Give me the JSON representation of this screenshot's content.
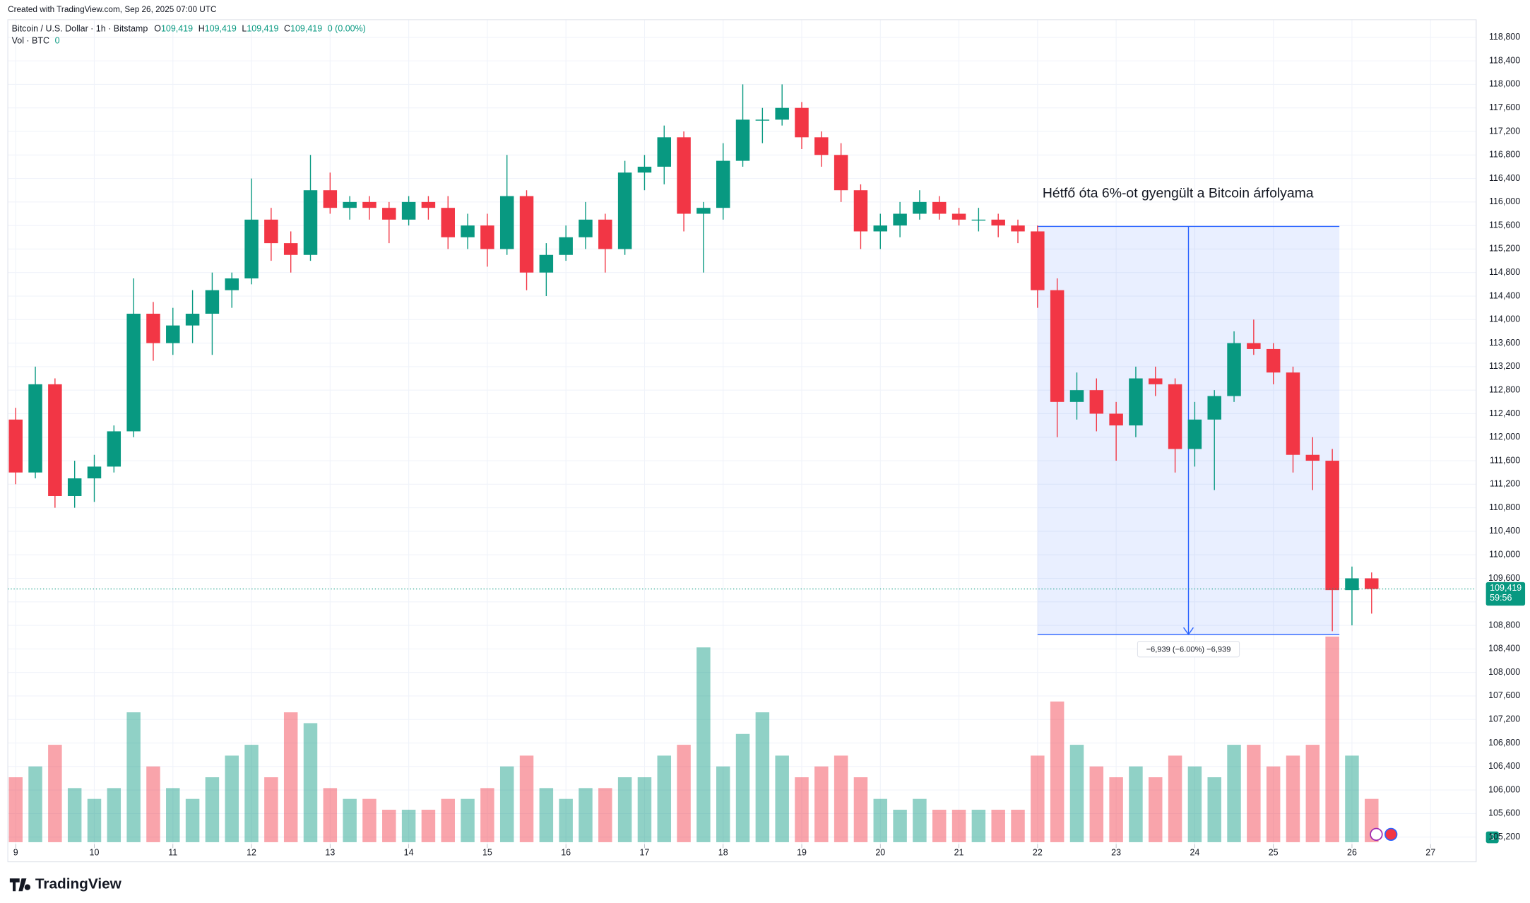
{
  "chart_data": {
    "type": "candlestick",
    "header": "Created with TradingView.com, Sep 26, 2025 07:00 UTC",
    "legend": {
      "symbol": "Bitcoin / U.S. Dollar · 1h · Bitstamp",
      "ohlc": [
        {
          "key": "O",
          "value": "109,419"
        },
        {
          "key": "H",
          "value": "109,419"
        },
        {
          "key": "L",
          "value": "109,419"
        },
        {
          "key": "C",
          "value": "109,419"
        }
      ],
      "change": "0 (0.00%)",
      "volume_name": "Vol · BTC",
      "volume_value": "0"
    },
    "annotation": "Hétfő óta 6%-ot gyengült a Bitcoin árfolyama",
    "brand": "TradingView",
    "up_color": "#089981",
    "down_color": "#f23645",
    "x": [
      9,
      9.25,
      9.5,
      9.75,
      10,
      10.25,
      10.5,
      10.75,
      11,
      11.25,
      11.5,
      11.75,
      12,
      12.25,
      12.5,
      12.75,
      13,
      13.25,
      13.5,
      13.75,
      14,
      14.25,
      14.5,
      14.75,
      15,
      15.25,
      15.5,
      15.75,
      16,
      16.25,
      16.5,
      16.75,
      17,
      17.25,
      17.5,
      17.75,
      18,
      18.25,
      18.5,
      18.75,
      19,
      19.25,
      19.5,
      19.75,
      20,
      20.25,
      20.5,
      20.75,
      21,
      21.25,
      21.5,
      21.75,
      22,
      22.25,
      22.5,
      22.75,
      23,
      23.25,
      23.5,
      23.75,
      24,
      24.25,
      24.5,
      24.75,
      25,
      25.25,
      25.5,
      25.75,
      26,
      26.25
    ],
    "open": [
      112300,
      111400,
      112900,
      111000,
      111300,
      111500,
      112100,
      114100,
      113600,
      113900,
      114100,
      114500,
      114700,
      115700,
      115300,
      115100,
      116200,
      115900,
      116000,
      115900,
      115700,
      116000,
      115900,
      115400,
      115600,
      115200,
      116100,
      114800,
      115100,
      115400,
      115700,
      115200,
      116500,
      116600,
      117100,
      115800,
      115900,
      116700,
      117400,
      117400,
      117600,
      117100,
      116800,
      116200,
      115500,
      115600,
      115800,
      116000,
      115800,
      115700,
      115700,
      115600,
      115500,
      114500,
      112600,
      112800,
      112400,
      112200,
      113000,
      112900,
      111800,
      112300,
      112700,
      113600,
      113500,
      113100,
      111700,
      111600,
      109400,
      109600
    ],
    "high": [
      112500,
      113200,
      113000,
      111600,
      111700,
      112200,
      114700,
      114300,
      114200,
      114500,
      114800,
      114800,
      116400,
      115900,
      115500,
      116800,
      116500,
      116100,
      116100,
      116000,
      116100,
      116100,
      116100,
      115800,
      115800,
      116800,
      116200,
      115300,
      115600,
      116000,
      115800,
      116700,
      116800,
      117300,
      117200,
      116000,
      117000,
      118000,
      117600,
      118000,
      117700,
      117200,
      117000,
      116300,
      115800,
      116000,
      116200,
      116100,
      115900,
      115900,
      115800,
      115700,
      115600,
      114700,
      113100,
      113000,
      112600,
      113200,
      113200,
      113000,
      112600,
      112800,
      113800,
      114000,
      113600,
      113200,
      112000,
      111800,
      109800,
      109700
    ],
    "low": [
      111200,
      111300,
      110800,
      110800,
      110900,
      111400,
      112000,
      113300,
      113400,
      113600,
      113400,
      114200,
      114600,
      115000,
      114800,
      115000,
      115800,
      115700,
      115700,
      115300,
      115600,
      115700,
      115200,
      115200,
      114900,
      115100,
      114500,
      114400,
      115000,
      115200,
      114800,
      115100,
      116200,
      116300,
      115500,
      114800,
      115700,
      116600,
      117000,
      117300,
      116900,
      116600,
      116000,
      115200,
      115200,
      115400,
      115700,
      115700,
      115600,
      115500,
      115400,
      115300,
      114200,
      112000,
      112300,
      112100,
      111600,
      112000,
      112700,
      111400,
      111500,
      111100,
      112600,
      113400,
      112900,
      111400,
      111100,
      108700,
      108800,
      109000
    ],
    "close": [
      111400,
      112900,
      111000,
      111300,
      111500,
      112100,
      114100,
      113600,
      113900,
      114100,
      114500,
      114700,
      115700,
      115300,
      115100,
      116200,
      115900,
      116000,
      115900,
      115700,
      116000,
      115900,
      115400,
      115600,
      115200,
      116100,
      114800,
      115100,
      115400,
      115700,
      115200,
      116500,
      116600,
      117100,
      115800,
      115900,
      116700,
      117400,
      117400,
      117600,
      117100,
      116800,
      116200,
      115500,
      115600,
      115800,
      116000,
      115800,
      115700,
      115700,
      115600,
      115500,
      114500,
      112600,
      112800,
      112400,
      112200,
      113000,
      112900,
      111800,
      112300,
      112700,
      113600,
      113500,
      113100,
      111700,
      111600,
      109400,
      109600,
      109419
    ],
    "volume": [
      30,
      35,
      45,
      25,
      20,
      25,
      60,
      35,
      25,
      20,
      30,
      40,
      45,
      30,
      60,
      55,
      25,
      20,
      20,
      15,
      15,
      15,
      20,
      20,
      25,
      35,
      40,
      25,
      20,
      25,
      25,
      30,
      30,
      40,
      45,
      90,
      35,
      50,
      60,
      40,
      30,
      35,
      40,
      30,
      20,
      15,
      20,
      15,
      15,
      15,
      15,
      15,
      40,
      65,
      45,
      35,
      30,
      35,
      30,
      40,
      35,
      30,
      45,
      45,
      35,
      40,
      45,
      95,
      40,
      20
    ],
    "last_price": {
      "value": 109419,
      "label": "109,419"
    },
    "countdown": "59:56",
    "measure": {
      "x0": 22,
      "x1": 25.84,
      "top": 115585,
      "bottom": 108646,
      "label": "−6,939 (−6.00%) −6,939"
    },
    "xlim": [
      8.9,
      27.58
    ],
    "xticks": [
      9,
      10,
      11,
      12,
      13,
      14,
      15,
      16,
      17,
      18,
      19,
      20,
      21,
      22,
      23,
      24,
      25,
      26,
      27
    ],
    "ylim": [
      104780,
      119100
    ],
    "yticks": [
      {
        "value": 105200,
        "label": "105,200"
      },
      {
        "value": 105600,
        "label": "105,600"
      },
      {
        "value": 106000,
        "label": "106,000"
      },
      {
        "value": 106400,
        "label": "106,400"
      },
      {
        "value": 106800,
        "label": "106,800"
      },
      {
        "value": 107200,
        "label": "107,200"
      },
      {
        "value": 107600,
        "label": "107,600"
      },
      {
        "value": 108000,
        "label": "108,000"
      },
      {
        "value": 108400,
        "label": "108,400"
      },
      {
        "value": 108800,
        "label": "108,800"
      },
      {
        "value": 109200,
        "label": "109,200"
      },
      {
        "value": 109600,
        "label": "109,600"
      },
      {
        "value": 110000,
        "label": "110,000"
      },
      {
        "value": 110400,
        "label": "110,400"
      },
      {
        "value": 110800,
        "label": "110,800"
      },
      {
        "value": 111200,
        "label": "111,200"
      },
      {
        "value": 111600,
        "label": "111,600"
      },
      {
        "value": 112000,
        "label": "112,000"
      },
      {
        "value": 112400,
        "label": "112,400"
      },
      {
        "value": 112800,
        "label": "112,800"
      },
      {
        "value": 113200,
        "label": "113,200"
      },
      {
        "value": 113600,
        "label": "113,600"
      },
      {
        "value": 114000,
        "label": "114,000"
      },
      {
        "value": 114400,
        "label": "114,400"
      },
      {
        "value": 114800,
        "label": "114,800"
      },
      {
        "value": 115200,
        "label": "115,200"
      },
      {
        "value": 115600,
        "label": "115,600"
      },
      {
        "value": 116000,
        "label": "116,000"
      },
      {
        "value": 116400,
        "label": "116,400"
      },
      {
        "value": 116800,
        "label": "116,800"
      },
      {
        "value": 117200,
        "label": "117,200"
      },
      {
        "value": 117600,
        "label": "117,600"
      },
      {
        "value": 118000,
        "label": "118,000"
      },
      {
        "value": 118400,
        "label": "118,400"
      },
      {
        "value": 118800,
        "label": "118,800"
      }
    ],
    "grid": true
  }
}
